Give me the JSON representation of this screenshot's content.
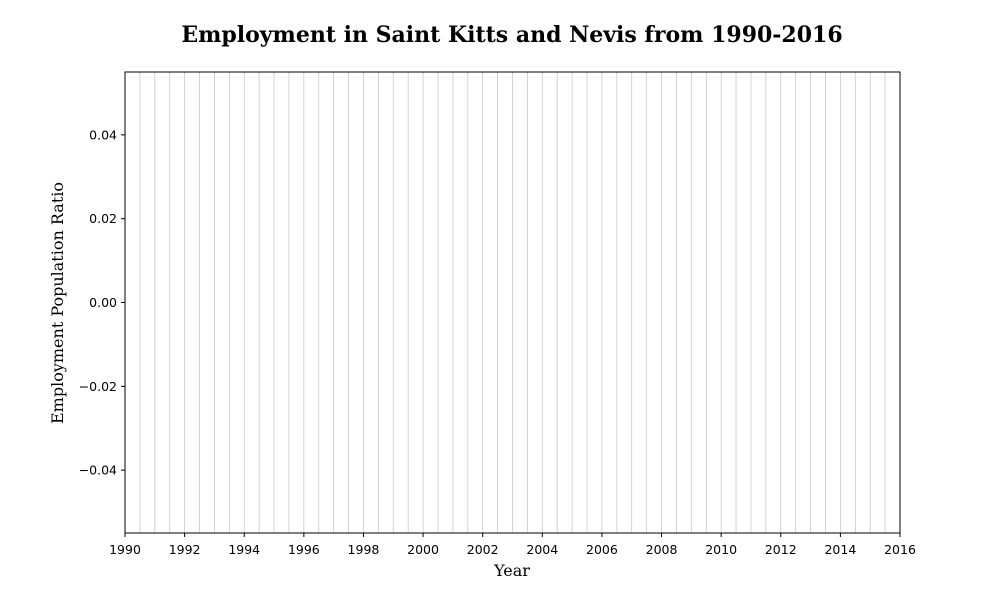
{
  "chart_data": {
    "type": "bar",
    "title": "Employment in Saint Kitts and Nevis from 1990-2016",
    "xlabel": "Year",
    "ylabel": "Employment Population Ratio",
    "x": [],
    "values": [],
    "xlim": [
      1990,
      2016
    ],
    "ylim": [
      -0.055,
      0.055
    ],
    "xticks": [
      1990,
      1992,
      1994,
      1996,
      1998,
      2000,
      2002,
      2004,
      2006,
      2008,
      2010,
      2012,
      2014,
      2016
    ],
    "yticks": [
      -0.04,
      -0.02,
      0.0,
      0.02,
      0.04
    ],
    "ytick_labels": [
      "−0.04",
      "−0.02",
      "0.00",
      "0.02",
      "0.04"
    ],
    "grid": "x",
    "grid_step": 0.5,
    "grid_color": "#c8c8c8"
  }
}
